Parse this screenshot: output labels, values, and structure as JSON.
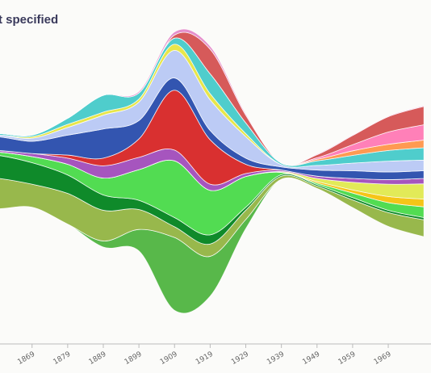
{
  "chart_data": {
    "type": "area",
    "subtype": "streamgraph",
    "title": "t specified",
    "x": [
      1849,
      1859,
      1869,
      1879,
      1889,
      1899,
      1909,
      1919,
      1929,
      1939,
      1949,
      1959,
      1969,
      1979
    ],
    "xtick_labels": [
      "1869",
      "1879",
      "1889",
      "1899",
      "1909",
      "1919",
      "1929",
      "1939",
      "1949",
      "1959",
      "1969"
    ],
    "xlim": [
      1860,
      1981
    ],
    "grid": false,
    "legend": "none",
    "series": [
      {
        "color": "#58b84a",
        "values": [
          0,
          0,
          0,
          0,
          8,
          28,
          95,
          52,
          12,
          0,
          0,
          0,
          0,
          0
        ]
      },
      {
        "color": "#98b84c",
        "values": [
          38,
          40,
          30,
          40,
          40,
          26,
          14,
          16,
          12,
          4,
          3,
          10,
          18,
          22
        ]
      },
      {
        "color": "#0f8a2a",
        "values": [
          30,
          30,
          28,
          24,
          20,
          12,
          12,
          12,
          4,
          2,
          2,
          3,
          3,
          3
        ]
      },
      {
        "color": "#52dc52",
        "values": [
          0,
          4,
          8,
          14,
          22,
          40,
          74,
          58,
          40,
          3,
          2,
          6,
          10,
          14
        ]
      },
      {
        "color": "#f5c518",
        "values": [
          0,
          0,
          0,
          0,
          0,
          0,
          0,
          0,
          0,
          0,
          2,
          4,
          8,
          10
        ]
      },
      {
        "color": "#e2ea58",
        "values": [
          0,
          0,
          0,
          0,
          0,
          0,
          0,
          0,
          0,
          1,
          4,
          10,
          16,
          20
        ]
      },
      {
        "color": "#a655be",
        "values": [
          2,
          2,
          4,
          8,
          16,
          16,
          14,
          8,
          4,
          2,
          3,
          5,
          6,
          7
        ]
      },
      {
        "color": "#d93030",
        "values": [
          0,
          0,
          0,
          4,
          10,
          24,
          78,
          58,
          12,
          0,
          0,
          0,
          0,
          0
        ]
      },
      {
        "color": "#3355b0",
        "values": [
          16,
          18,
          16,
          26,
          38,
          24,
          16,
          12,
          8,
          4,
          8,
          10,
          10,
          10
        ]
      },
      {
        "color": "#bccbf5",
        "values": [
          0,
          2,
          4,
          10,
          18,
          24,
          36,
          40,
          28,
          3,
          6,
          10,
          14,
          14
        ]
      },
      {
        "color": "#e8e64a",
        "values": [
          0,
          0,
          2,
          4,
          4,
          4,
          8,
          8,
          4,
          0,
          0,
          0,
          0,
          0
        ]
      },
      {
        "color": "#4fcdcc",
        "values": [
          2,
          2,
          2,
          8,
          22,
          8,
          8,
          26,
          14,
          2,
          6,
          10,
          14,
          16
        ]
      },
      {
        "color": "#ff9a52",
        "values": [
          0,
          0,
          0,
          0,
          0,
          0,
          0,
          0,
          0,
          0,
          2,
          6,
          8,
          10
        ]
      },
      {
        "color": "#ff80b8",
        "values": [
          0,
          0,
          0,
          0,
          0,
          0,
          0,
          0,
          0,
          0,
          2,
          8,
          16,
          20
        ]
      },
      {
        "color": "#d65a5a",
        "values": [
          0,
          0,
          0,
          0,
          0,
          0,
          4,
          32,
          10,
          0,
          4,
          12,
          20,
          24
        ]
      },
      {
        "color": "#e58fcc",
        "values": [
          0,
          0,
          0,
          0,
          0,
          2,
          4,
          4,
          2,
          0,
          1,
          1,
          1,
          1
        ]
      }
    ]
  }
}
